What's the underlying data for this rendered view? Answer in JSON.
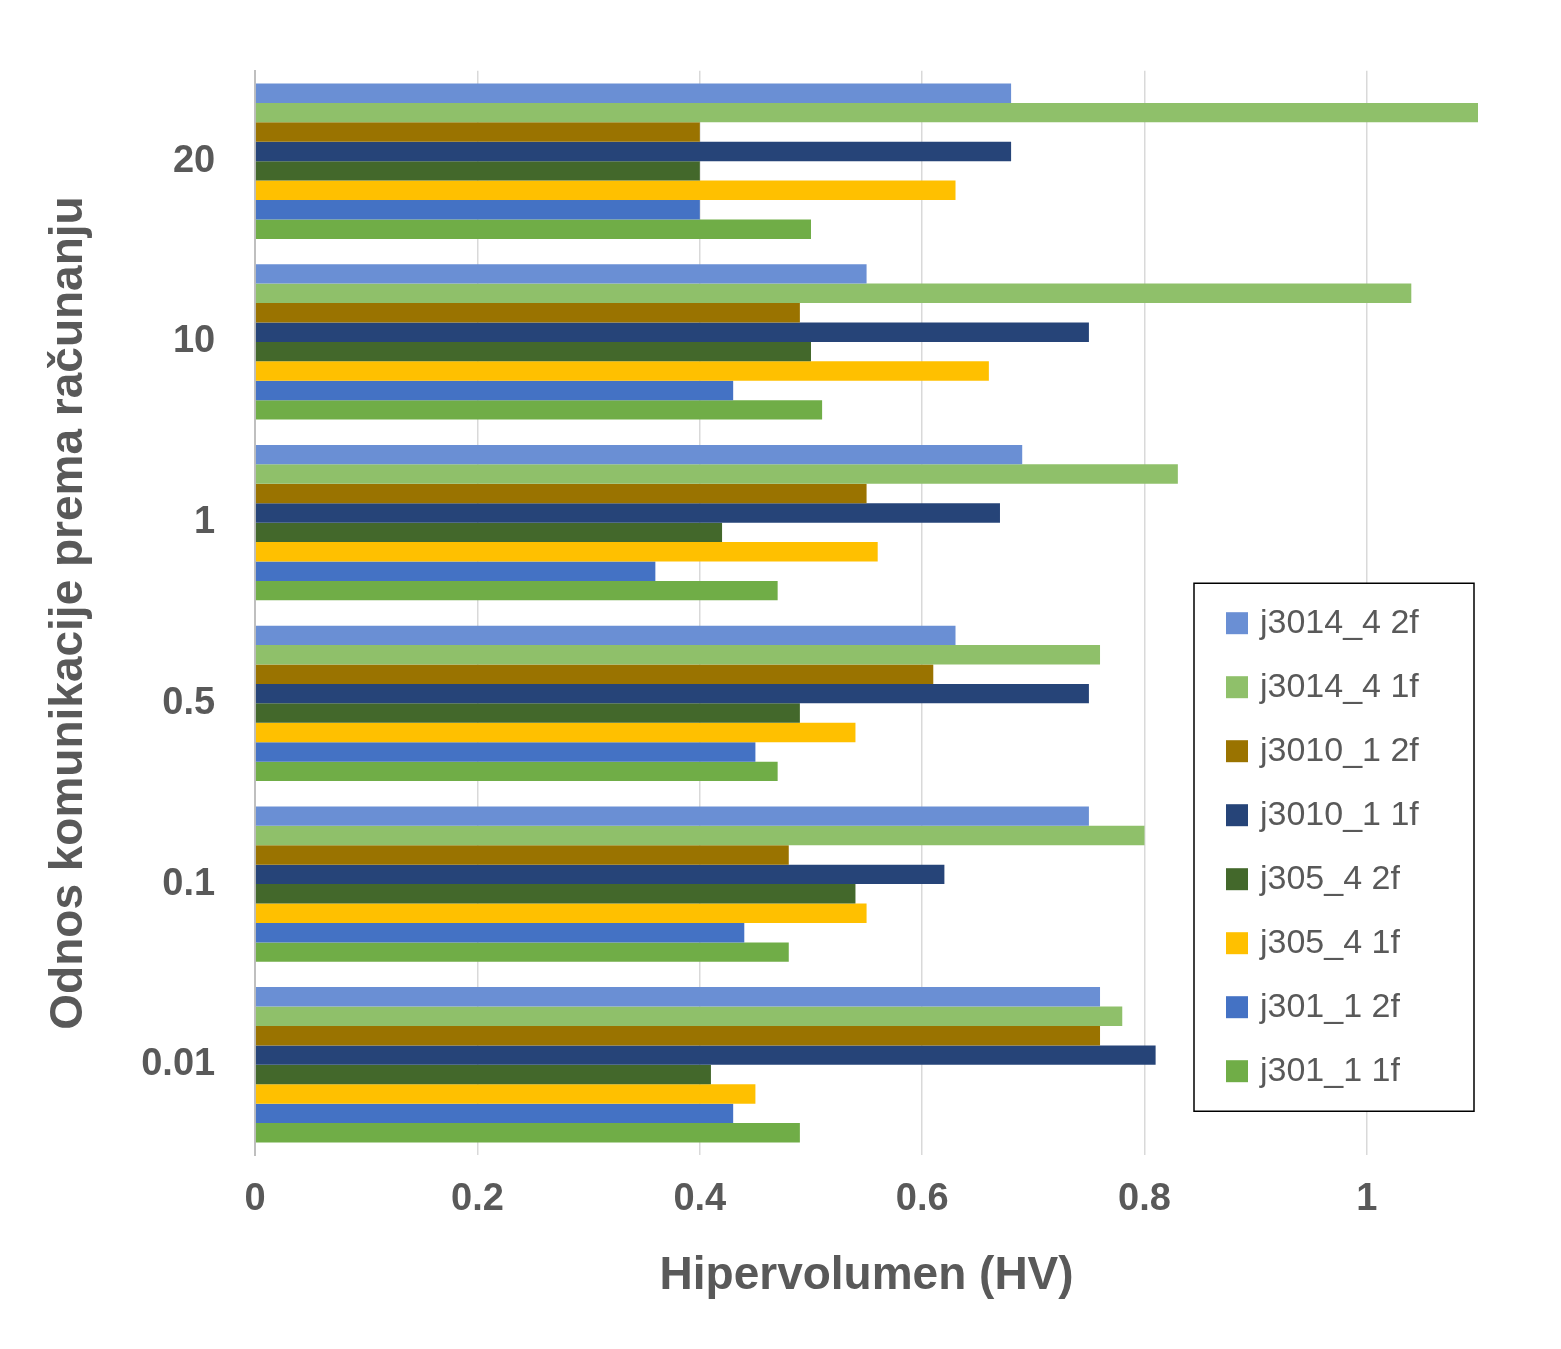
{
  "chart_data": {
    "type": "bar",
    "orientation": "horizontal",
    "xlabel": "Hipervolumen (HV)",
    "ylabel": "Odnos komunikacije prema računanju",
    "categories": [
      "20",
      "10",
      "1",
      "0.5",
      "0.1",
      "0.01"
    ],
    "series": [
      {
        "name": "j3014_4 2f",
        "color": "#6a8fd4",
        "values": [
          0.68,
          0.55,
          0.69,
          0.63,
          0.75,
          0.76
        ]
      },
      {
        "name": "j3014_4 1f",
        "color": "#8fc06a",
        "values": [
          1.1,
          1.04,
          0.83,
          0.76,
          0.8,
          0.78
        ]
      },
      {
        "name": "j3010_1 2f",
        "color": "#9a7300",
        "values": [
          0.4,
          0.49,
          0.55,
          0.61,
          0.48,
          0.76
        ]
      },
      {
        "name": "j3010_1 1f",
        "color": "#264478",
        "values": [
          0.68,
          0.75,
          0.67,
          0.75,
          0.62,
          0.81
        ]
      },
      {
        "name": "j305_4 2f",
        "color": "#43682b",
        "values": [
          0.4,
          0.5,
          0.42,
          0.49,
          0.54,
          0.41
        ]
      },
      {
        "name": "j305_4 1f",
        "color": "#ffc000",
        "values": [
          0.63,
          0.66,
          0.56,
          0.54,
          0.55,
          0.45
        ]
      },
      {
        "name": "j301_1 2f",
        "color": "#4472c4",
        "values": [
          0.4,
          0.43,
          0.36,
          0.45,
          0.44,
          0.43
        ]
      },
      {
        "name": "j301_1 1f",
        "color": "#70ad47",
        "values": [
          0.5,
          0.51,
          0.47,
          0.47,
          0.48,
          0.49
        ]
      }
    ],
    "xlim": [
      0,
      1.1
    ],
    "xticks": [
      0,
      0.2,
      0.4,
      0.6,
      0.8,
      1
    ],
    "grid": "x",
    "legend": "bottom right"
  }
}
